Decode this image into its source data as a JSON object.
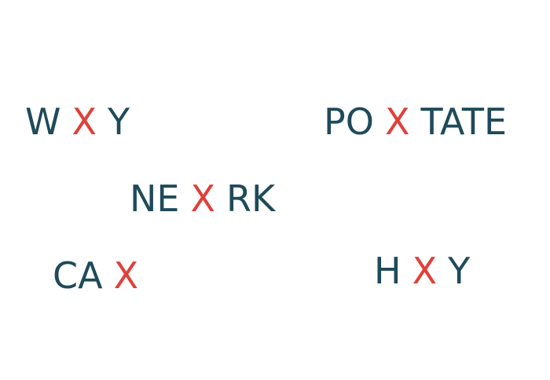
{
  "colors": {
    "dark": "#1f4a5a",
    "red": "#e0403a"
  },
  "words": [
    {
      "pre": "W",
      "mid": "X",
      "post": "Y"
    },
    {
      "pre": "PO",
      "mid": "X",
      "post": "TATE"
    },
    {
      "pre": "NE",
      "mid": "X",
      "post": "RK"
    },
    {
      "pre": "CA",
      "mid": "X",
      "post": ""
    },
    {
      "pre": "H",
      "mid": "X",
      "post": "Y"
    }
  ]
}
